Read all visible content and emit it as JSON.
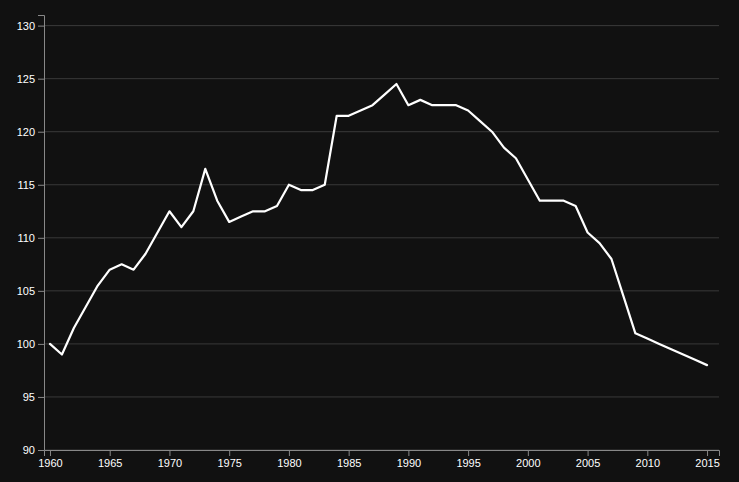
{
  "chart_data": {
    "type": "line",
    "x": [
      1960,
      1961,
      1962,
      1963,
      1964,
      1965,
      1966,
      1967,
      1968,
      1969,
      1970,
      1971,
      1972,
      1973,
      1974,
      1975,
      1976,
      1977,
      1978,
      1979,
      1980,
      1981,
      1982,
      1983,
      1984,
      1985,
      1986,
      1987,
      1988,
      1989,
      1990,
      1991,
      1992,
      1993,
      1994,
      1995,
      1996,
      1997,
      1998,
      1999,
      2000,
      2001,
      2002,
      2003,
      2004,
      2005,
      2006,
      2007,
      2008,
      2009,
      2010,
      2011,
      2012,
      2013,
      2014,
      2015
    ],
    "values": [
      100.0,
      99.0,
      101.5,
      103.5,
      105.5,
      107.0,
      107.5,
      107.0,
      108.5,
      110.5,
      112.5,
      111.0,
      112.5,
      116.5,
      113.5,
      111.5,
      112.0,
      112.5,
      112.5,
      113.0,
      115.0,
      114.5,
      114.5,
      115.0,
      121.5,
      121.5,
      122.0,
      122.5,
      123.5,
      124.5,
      122.5,
      123.0,
      122.5,
      122.5,
      122.5,
      122.0,
      121.0,
      120.0,
      118.5,
      117.5,
      115.5,
      113.5,
      113.5,
      113.5,
      113.0,
      110.5,
      109.5,
      108.0,
      104.5,
      101.0,
      100.5,
      100.0,
      99.5,
      99.0,
      98.5,
      98.0
    ],
    "color": "#ffffff",
    "xlim": [
      1959.5,
      2016.0
    ],
    "ylim": [
      90,
      131
    ],
    "xticks": [
      1960,
      1965,
      1970,
      1975,
      1980,
      1985,
      1990,
      1995,
      2000,
      2005,
      2010,
      2015
    ],
    "yticks": [
      90,
      95,
      100,
      105,
      110,
      115,
      120,
      125,
      130
    ],
    "grid": true
  }
}
